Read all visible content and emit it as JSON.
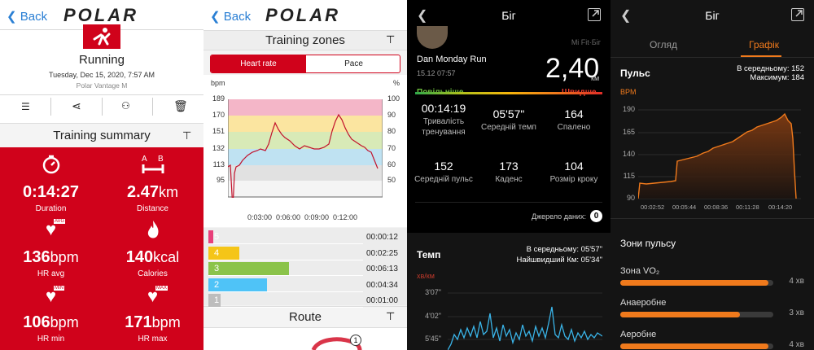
{
  "p1": {
    "back": "Back",
    "logo": "POLAR",
    "title": "Running",
    "date": "Tuesday, Dec 15, 2020, 7:57 AM",
    "device": "Polar Vantage M",
    "summary": "Training summary",
    "stats": [
      {
        "v": "0:14:27",
        "u": "",
        "l": "Duration"
      },
      {
        "v": "2.47",
        "u": "km",
        "l": "Distance"
      },
      {
        "v": "136",
        "u": "bpm",
        "l": "HR avg",
        "badge": "AVG"
      },
      {
        "v": "140",
        "u": "kcal",
        "l": "Calories"
      },
      {
        "v": "106",
        "u": "bpm",
        "l": "HR min",
        "badge": "MIN"
      },
      {
        "v": "171",
        "u": "bpm",
        "l": "HR max",
        "badge": "MAX"
      }
    ]
  },
  "p2": {
    "back": "Back",
    "logo": "POLAR",
    "title": "Training zones",
    "tab_hr": "Heart rate",
    "tab_pace": "Pace",
    "ylabel_left": "bpm",
    "ylabel_right": "%",
    "bpm_ticks": [
      "189",
      "170",
      "151",
      "132",
      "113",
      "95"
    ],
    "pct_ticks": [
      "100",
      "90",
      "80",
      "70",
      "60",
      "50"
    ],
    "x_ticks": [
      "0:03:00",
      "0:06:00",
      "0:09:00",
      "0:12:00"
    ],
    "zones": [
      {
        "n": "5",
        "t": "00:00:12",
        "frac": 0.02,
        "color": "#e8407a"
      },
      {
        "n": "4",
        "t": "00:02:25",
        "frac": 0.2,
        "color": "#f5c518"
      },
      {
        "n": "3",
        "t": "00:06:13",
        "frac": 0.52,
        "color": "#8bc34a"
      },
      {
        "n": "2",
        "t": "00:04:34",
        "frac": 0.38,
        "color": "#4fc3f7"
      },
      {
        "n": "1",
        "t": "00:01:00",
        "frac": 0.08,
        "color": "#bdbdbd"
      }
    ],
    "route": "Route",
    "route_badge": "1"
  },
  "p3": {
    "title": "Біг",
    "source_app": "Mi Fit·Біг",
    "name": "Dan Monday Run",
    "date": "15.12 07:57",
    "distance": "2,40",
    "unit": "км",
    "slower": "Повільніше",
    "faster": "Швидше",
    "metrics": [
      {
        "v": "00:14:19",
        "l": "Тривалість тренування"
      },
      {
        "v": "05'57\"",
        "l": "Середній темп"
      },
      {
        "v": "164",
        "l": "Спалено"
      },
      {
        "v": "152",
        "l": "Середній пульс"
      },
      {
        "v": "173",
        "l": "Каденс"
      },
      {
        "v": "104",
        "l": "Розмір кроку"
      }
    ],
    "source_label": "Джерело даних:",
    "source_num": "0",
    "pace_title": "Темп",
    "avg_pace": "В середньому: 05'57\"",
    "best_pace": "Найшвидший Км: 05'34\"",
    "pace_unit": "хв/км",
    "pace_ticks": [
      "3'07\"",
      "4'02\"",
      "5'45\""
    ]
  },
  "p4": {
    "title": "Біг",
    "tab_overview": "Огляд",
    "tab_graph": "Графік",
    "pulse_title": "Пульс",
    "avg": "В середньому: 152",
    "max": "Максимум: 184",
    "unit": "BPM",
    "y_ticks": [
      "190",
      "165",
      "140",
      "115",
      "90"
    ],
    "x_ticks": [
      "00:02:52",
      "00:05:44",
      "00:08:36",
      "00:11:28",
      "00:14:20"
    ],
    "zones_title": "Зони пульсу",
    "zones": [
      {
        "label": "Зона VO₂",
        "t": "4 хв",
        "frac": 0.97
      },
      {
        "label": "Анаеробне",
        "t": "3 хв",
        "frac": 0.78
      },
      {
        "label": "Аеробне",
        "t": "4 хв",
        "frac": 0.97
      }
    ],
    "accent": "#f07a1c"
  }
}
